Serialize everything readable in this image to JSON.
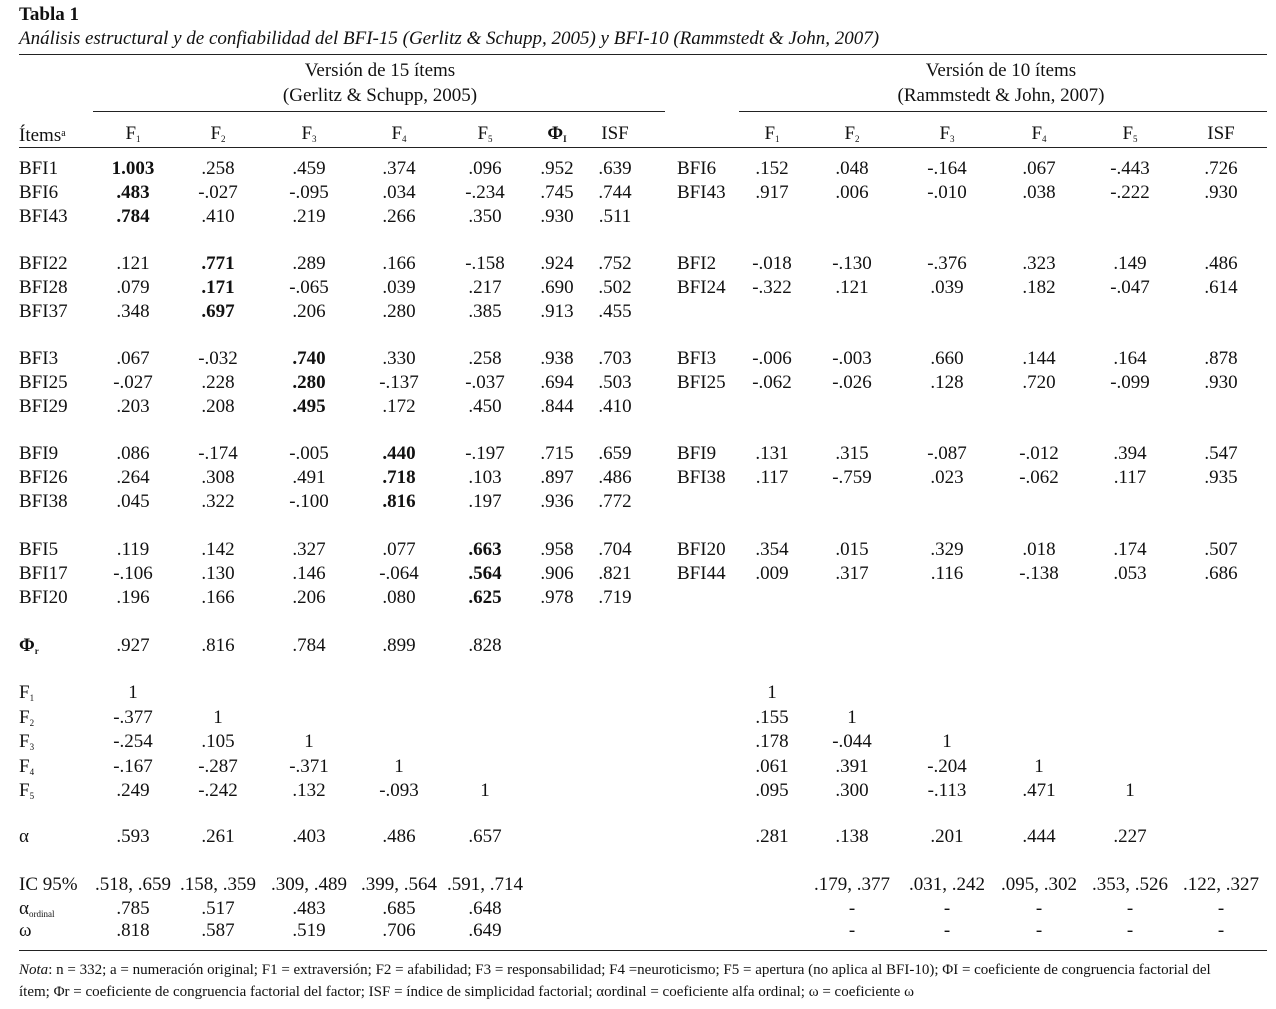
{
  "caption": {
    "table_label": "Tabla 1",
    "title": "Análisis estructural y de confiabilidad del BFI-15 (Gerlitz & Schupp, 2005) y BFI-10 (Rammstedt & John, 2007)"
  },
  "groups": {
    "left_line1": "Versión de 15 ítems",
    "left_line2": "(Gerlitz & Schupp, 2005)",
    "right_line1": "Versión de 10 ítems",
    "right_line2": "(Rammstedt & John, 2007)"
  },
  "headers": {
    "items": "Ítems",
    "items_sup": "a",
    "F": "F",
    "phi": "Φ",
    "phi_sub": "I",
    "isf": "ISF",
    "subs": [
      "1",
      "2",
      "3",
      "4",
      "5"
    ]
  },
  "blocks15": [
    [
      {
        "item": "BFI1",
        "vals": [
          "1.003",
          ".258",
          ".459",
          ".374",
          ".096"
        ],
        "bold": 0,
        "phi": ".952",
        "isf": ".639"
      },
      {
        "item": "BFI6",
        "vals": [
          ".483",
          "-.027",
          "-.095",
          ".034",
          "-.234"
        ],
        "bold": 0,
        "phi": ".745",
        "isf": ".744"
      },
      {
        "item": "BFI43",
        "vals": [
          ".784",
          ".410",
          ".219",
          ".266",
          ".350"
        ],
        "bold": 0,
        "phi": ".930",
        "isf": ".511"
      }
    ],
    [
      {
        "item": "BFI22",
        "vals": [
          ".121",
          ".771",
          ".289",
          ".166",
          "-.158"
        ],
        "bold": 1,
        "phi": ".924",
        "isf": ".752"
      },
      {
        "item": "BFI28",
        "vals": [
          ".079",
          ".171",
          "-.065",
          ".039",
          ".217"
        ],
        "bold": 1,
        "phi": ".690",
        "isf": ".502"
      },
      {
        "item": "BFI37",
        "vals": [
          ".348",
          ".697",
          ".206",
          ".280",
          ".385"
        ],
        "bold": 1,
        "phi": ".913",
        "isf": ".455"
      }
    ],
    [
      {
        "item": "BFI3",
        "vals": [
          ".067",
          "-.032",
          ".740",
          ".330",
          ".258"
        ],
        "bold": 2,
        "phi": ".938",
        "isf": ".703"
      },
      {
        "item": "BFI25",
        "vals": [
          "-.027",
          ".228",
          ".280",
          "-.137",
          "-.037"
        ],
        "bold": 2,
        "phi": ".694",
        "isf": ".503"
      },
      {
        "item": "BFI29",
        "vals": [
          ".203",
          ".208",
          ".495",
          ".172",
          ".450"
        ],
        "bold": 2,
        "phi": ".844",
        "isf": ".410"
      }
    ],
    [
      {
        "item": "BFI9",
        "vals": [
          ".086",
          "-.174",
          "-.005",
          ".440",
          "-.197"
        ],
        "bold": 3,
        "phi": ".715",
        "isf": ".659"
      },
      {
        "item": "BFI26",
        "vals": [
          ".264",
          ".308",
          ".491",
          ".718",
          ".103"
        ],
        "bold": 3,
        "phi": ".897",
        "isf": ".486"
      },
      {
        "item": "BFI38",
        "vals": [
          ".045",
          ".322",
          "-.100",
          ".816",
          ".197"
        ],
        "bold": 3,
        "phi": ".936",
        "isf": ".772"
      }
    ],
    [
      {
        "item": "BFI5",
        "vals": [
          ".119",
          ".142",
          ".327",
          ".077",
          ".663"
        ],
        "bold": 4,
        "phi": ".958",
        "isf": ".704"
      },
      {
        "item": "BFI17",
        "vals": [
          "-.106",
          ".130",
          ".146",
          "-.064",
          ".564"
        ],
        "bold": 4,
        "phi": ".906",
        "isf": ".821"
      },
      {
        "item": "BFI20",
        "vals": [
          ".196",
          ".166",
          ".206",
          ".080",
          ".625"
        ],
        "bold": 4,
        "phi": ".978",
        "isf": ".719"
      }
    ]
  ],
  "blocks10": [
    [
      {
        "item": "BFI6",
        "vals": [
          ".152",
          ".048",
          "-.164",
          ".067",
          "-.443"
        ],
        "isf": ".726"
      },
      {
        "item": "BFI43",
        "vals": [
          ".917",
          ".006",
          "-.010",
          ".038",
          "-.222"
        ],
        "isf": ".930"
      }
    ],
    [
      {
        "item": "BFI2",
        "vals": [
          "-.018",
          "-.130",
          "-.376",
          ".323",
          ".149"
        ],
        "isf": ".486"
      },
      {
        "item": "BFI24",
        "vals": [
          "-.322",
          ".121",
          ".039",
          ".182",
          "-.047"
        ],
        "isf": ".614"
      }
    ],
    [
      {
        "item": "BFI3",
        "vals": [
          "-.006",
          "-.003",
          ".660",
          ".144",
          ".164"
        ],
        "isf": ".878"
      },
      {
        "item": "BFI25",
        "vals": [
          "-.062",
          "-.026",
          ".128",
          ".720",
          "-.099"
        ],
        "isf": ".930"
      }
    ],
    [
      {
        "item": "BFI9",
        "vals": [
          ".131",
          ".315",
          "-.087",
          "-.012",
          ".394"
        ],
        "isf": ".547"
      },
      {
        "item": "BFI38",
        "vals": [
          ".117",
          "-.759",
          ".023",
          "-.062",
          ".117"
        ],
        "isf": ".935"
      }
    ],
    [
      {
        "item": "BFI20",
        "vals": [
          ".354",
          ".015",
          ".329",
          ".018",
          ".174"
        ],
        "isf": ".507"
      },
      {
        "item": "BFI44",
        "vals": [
          ".009",
          ".317",
          ".116",
          "-.138",
          ".053"
        ],
        "isf": ".686"
      }
    ]
  ],
  "phi_r": {
    "label": "Φ",
    "sub": "r",
    "vals": [
      ".927",
      ".816",
      ".784",
      ".899",
      ".828"
    ]
  },
  "corr": {
    "labels": [
      "F",
      "F",
      "F",
      "F",
      "F"
    ],
    "left": [
      [
        "1"
      ],
      [
        "-.377",
        "1"
      ],
      [
        "-.254",
        ".105",
        "1"
      ],
      [
        "-.167",
        "-.287",
        "-.371",
        "1"
      ],
      [
        ".249",
        "-.242",
        ".132",
        "-.093",
        "1"
      ]
    ],
    "right": [
      [
        "1"
      ],
      [
        ".155",
        "1"
      ],
      [
        ".178",
        "-.044",
        "1"
      ],
      [
        ".061",
        ".391",
        "-.204",
        "1"
      ],
      [
        ".095",
        ".300",
        "-.113",
        ".471",
        "1"
      ]
    ]
  },
  "alpha": {
    "label": "α",
    "left": [
      ".593",
      ".261",
      ".403",
      ".486",
      ".657"
    ],
    "right": [
      ".281",
      ".138",
      ".201",
      ".444",
      ".227"
    ]
  },
  "ci": {
    "label": "IC 95%",
    "left": [
      ".518, .659",
      ".158, .359",
      ".309, .489",
      ".399, .564",
      ".591, .714"
    ],
    "right": [
      ".179, .377",
      ".031, .242",
      ".095, .302",
      ".353, .526",
      ".122, .327"
    ]
  },
  "alpha_ord": {
    "label": "α",
    "sub": "ordinal",
    "left": [
      ".785",
      ".517",
      ".483",
      ".685",
      ".648"
    ],
    "right": [
      "-",
      "-",
      "-",
      "-",
      "-"
    ]
  },
  "omega": {
    "label": "ω",
    "left": [
      ".818",
      ".587",
      ".519",
      ".706",
      ".649"
    ],
    "right": [
      "-",
      "-",
      "-",
      "-",
      "-"
    ]
  },
  "note": {
    "line1_lead": "Nota",
    "line1": ": n = 332; a = numeración original; F1 = extraversión; F2 = afabilidad; F3 = responsabilidad; F4 =neuroticismo; F5 = apertura (no aplica al BFI-10); ΦI = coeficiente de congruencia factorial del",
    "line2": "ítem; Φr = coeficiente de congruencia factorial del factor; ISF = índice de simplicidad factorial; αordinal = coeficiente alfa ordinal; ω = coeficiente ω"
  }
}
